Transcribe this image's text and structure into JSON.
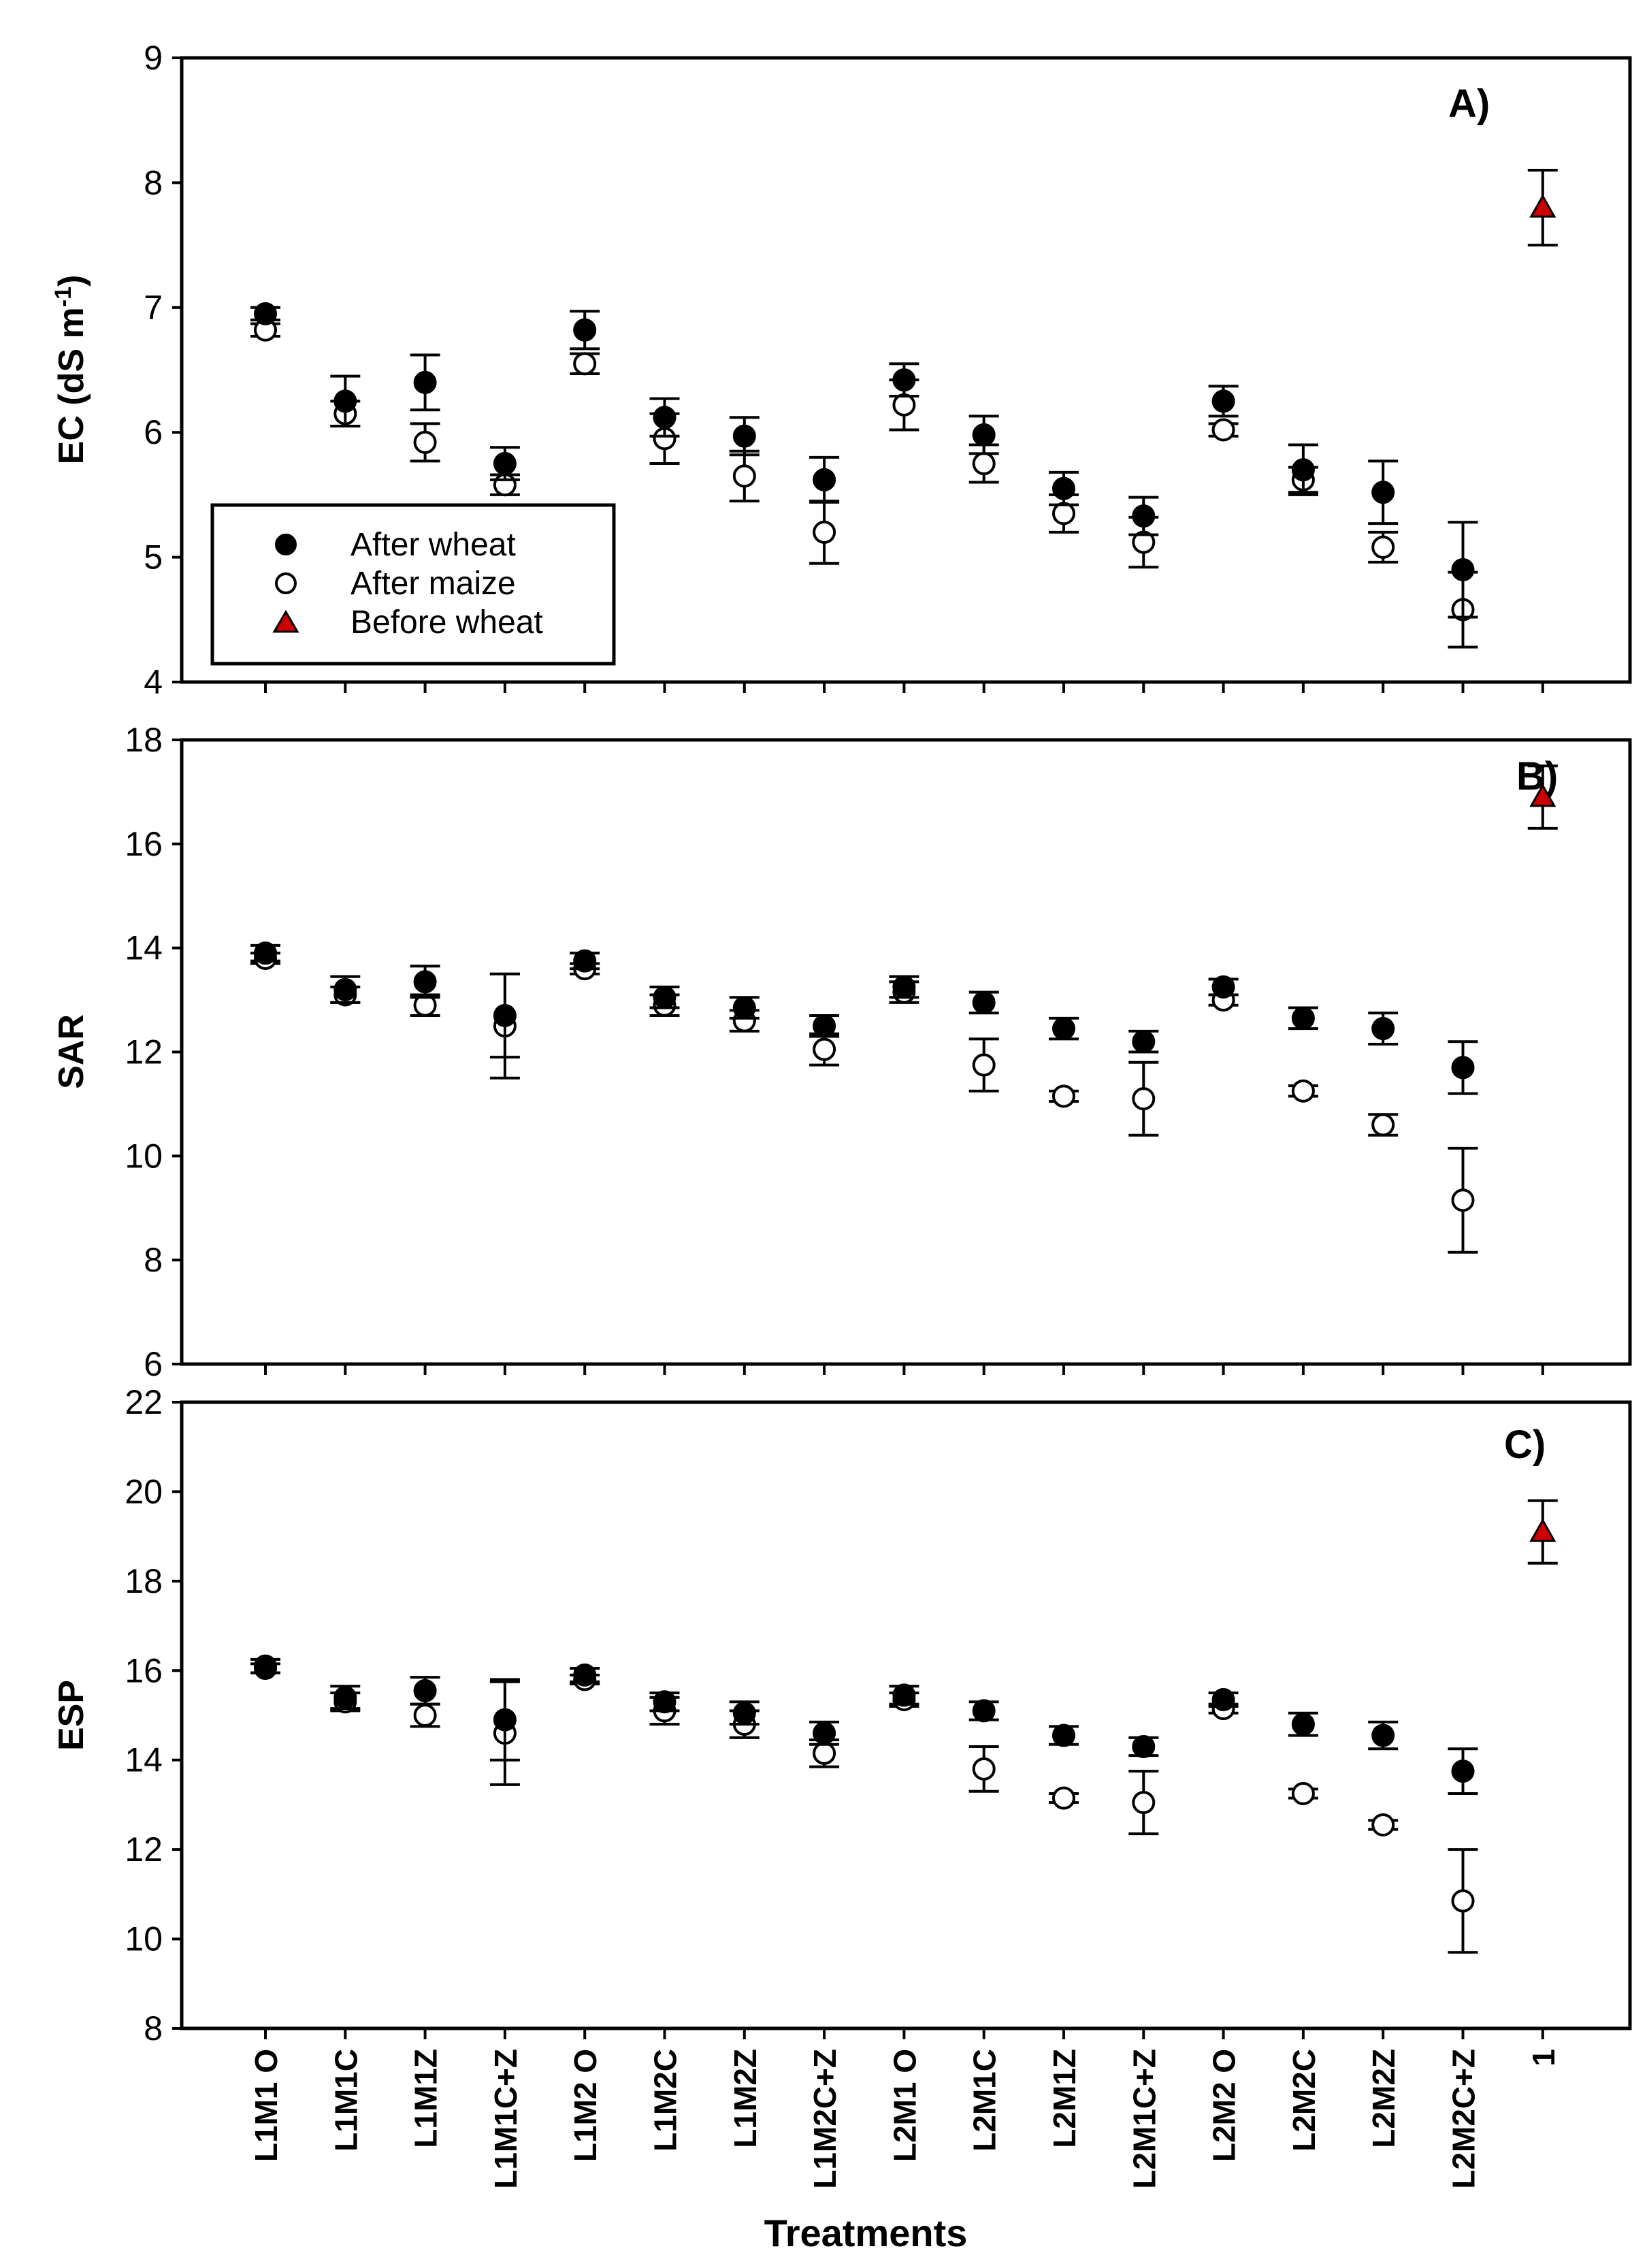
{
  "chart_data": {
    "type": "scatter",
    "categories": [
      "L1M1 O",
      "L1M1C",
      "L1M1Z",
      "L1M1C+Z",
      "L1M2 O",
      "L1M2C",
      "L1M2Z",
      "L1M2C+Z",
      "L2M1 O",
      "L2M1C",
      "L2M1Z",
      "L2M1C+Z",
      "L2M2 O",
      "L2M2C",
      "L2M2Z",
      "L2M2C+Z",
      "1"
    ],
    "xlabel": "Treatments",
    "legend": {
      "position": "bottom-left of panel A",
      "entries": [
        {
          "name": "After wheat",
          "marker": "filled-circle",
          "color": "#000000"
        },
        {
          "name": "After maize",
          "marker": "open-circle",
          "color": "#000000"
        },
        {
          "name": "Before wheat",
          "marker": "triangle",
          "color": "#cc0000"
        }
      ]
    },
    "panels": [
      {
        "label": "A)",
        "ylabel": "EC (dS m",
        "ylabel_sup": "-1",
        "ylabel_tail": ")",
        "ylim": [
          4,
          9
        ],
        "yticks": [
          4,
          5,
          6,
          7,
          8,
          9
        ],
        "series": [
          {
            "name": "After wheat",
            "values": [
              6.95,
              6.25,
              6.4,
              5.75,
              6.82,
              6.12,
              5.97,
              5.62,
              6.42,
              5.98,
              5.55,
              5.33,
              6.25,
              5.7,
              5.52,
              4.9,
              null
            ],
            "err": [
              0.05,
              0.2,
              0.22,
              0.13,
              0.15,
              0.15,
              0.15,
              0.18,
              0.13,
              0.15,
              0.13,
              0.15,
              0.12,
              0.2,
              0.25,
              0.38,
              null
            ]
          },
          {
            "name": "After maize",
            "values": [
              6.82,
              6.15,
              5.92,
              5.58,
              6.55,
              5.95,
              5.65,
              5.2,
              6.22,
              5.75,
              5.35,
              5.12,
              6.02,
              5.62,
              5.08,
              4.58,
              null
            ],
            "err": [
              0.05,
              0.1,
              0.15,
              0.08,
              0.08,
              0.2,
              0.2,
              0.25,
              0.2,
              0.15,
              0.15,
              0.2,
              0.05,
              0.1,
              0.12,
              0.3,
              null
            ]
          },
          {
            "name": "Before wheat",
            "values": [
              null,
              null,
              null,
              null,
              null,
              null,
              null,
              null,
              null,
              null,
              null,
              null,
              null,
              null,
              null,
              null,
              7.8
            ],
            "err": [
              null,
              null,
              null,
              null,
              null,
              null,
              null,
              null,
              null,
              null,
              null,
              null,
              null,
              null,
              null,
              null,
              0.3
            ]
          }
        ]
      },
      {
        "label": "B)",
        "ylabel": "SAR",
        "ylim": [
          6,
          18
        ],
        "yticks": [
          6,
          8,
          10,
          12,
          14,
          16,
          18
        ],
        "series": [
          {
            "name": "After wheat",
            "values": [
              13.9,
              13.2,
              13.35,
              12.7,
              13.75,
              13.05,
              12.85,
              12.5,
              13.25,
              12.95,
              12.45,
              12.2,
              13.25,
              12.65,
              12.45,
              11.7,
              null
            ],
            "err": [
              0.15,
              0.25,
              0.3,
              0.8,
              0.15,
              0.2,
              0.2,
              0.2,
              0.2,
              0.2,
              0.2,
              0.2,
              0.15,
              0.2,
              0.3,
              0.5,
              null
            ]
          },
          {
            "name": "After maize",
            "values": [
              13.8,
              13.1,
              12.9,
              12.5,
              13.6,
              12.9,
              12.6,
              12.05,
              13.15,
              11.75,
              11.15,
              11.1,
              13.0,
              11.25,
              10.6,
              9.15,
              null
            ],
            "err": [
              0.1,
              0.15,
              0.2,
              1.0,
              0.1,
              0.2,
              0.2,
              0.3,
              0.2,
              0.5,
              0.1,
              0.7,
              0.1,
              0.1,
              0.2,
              1.0,
              null
            ]
          },
          {
            "name": "Before wheat",
            "values": [
              null,
              null,
              null,
              null,
              null,
              null,
              null,
              null,
              null,
              null,
              null,
              null,
              null,
              null,
              null,
              null,
              16.9
            ],
            "err": [
              null,
              null,
              null,
              null,
              null,
              null,
              null,
              null,
              null,
              null,
              null,
              null,
              null,
              null,
              null,
              null,
              0.6
            ]
          }
        ]
      },
      {
        "label": "C)",
        "ylabel": "ESP",
        "ylim": [
          8,
          22
        ],
        "yticks": [
          8,
          10,
          12,
          14,
          16,
          18,
          20,
          22
        ],
        "series": [
          {
            "name": "After wheat",
            "values": [
              16.1,
              15.4,
              15.55,
              14.9,
              15.9,
              15.3,
              15.05,
              14.6,
              15.45,
              15.1,
              14.55,
              14.3,
              15.35,
              14.8,
              14.55,
              13.75,
              null
            ],
            "err": [
              0.15,
              0.25,
              0.3,
              0.9,
              0.15,
              0.2,
              0.25,
              0.25,
              0.2,
              0.2,
              0.2,
              0.2,
              0.15,
              0.25,
              0.3,
              0.5,
              null
            ]
          },
          {
            "name": "After maize",
            "values": [
              16.05,
              15.3,
              15.0,
              14.6,
              15.8,
              15.1,
              14.8,
              14.15,
              15.35,
              13.8,
              13.15,
              13.05,
              15.15,
              13.25,
              12.55,
              10.85,
              null
            ],
            "err": [
              0.1,
              0.2,
              0.25,
              1.15,
              0.1,
              0.3,
              0.3,
              0.3,
              0.15,
              0.5,
              0.1,
              0.7,
              0.1,
              0.1,
              0.1,
              1.15,
              null
            ]
          },
          {
            "name": "Before wheat",
            "values": [
              null,
              null,
              null,
              null,
              null,
              null,
              null,
              null,
              null,
              null,
              null,
              null,
              null,
              null,
              null,
              null,
              19.1
            ],
            "err": [
              null,
              null,
              null,
              null,
              null,
              null,
              null,
              null,
              null,
              null,
              null,
              null,
              null,
              null,
              null,
              null,
              0.7
            ]
          }
        ]
      }
    ]
  }
}
